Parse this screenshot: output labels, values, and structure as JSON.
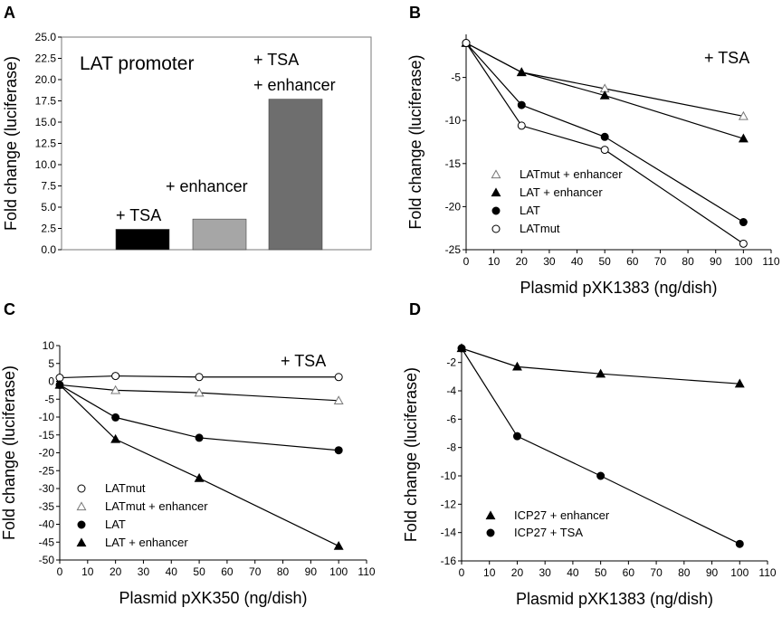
{
  "chart_data": [
    {
      "panel": "A",
      "type": "bar",
      "ylabel": "Fold change (luciferase)",
      "xlabel": "",
      "ylim": [
        0,
        25
      ],
      "yticks": [
        "0.0",
        "2.5",
        "5.0",
        "7.5",
        "10.0",
        "12.5",
        "15.0",
        "17.5",
        "20.0",
        "22.5",
        "25.0"
      ],
      "categories": [
        "+ TSA",
        "+ enhancer",
        "+ TSA\n+ enhancer"
      ],
      "values": [
        2.4,
        3.6,
        17.7
      ],
      "bar_colors": [
        "#000000",
        "#a6a6a6",
        "#6e6e6e"
      ],
      "annotations": [
        "LAT promoter",
        "+ TSA",
        "+ enhancer",
        "+ TSA",
        "+ enhancer"
      ],
      "grid": false
    },
    {
      "panel": "B",
      "type": "line",
      "xlabel": "Plasmid pXK1383 (ng/dish)",
      "ylabel": "Fold change (luciferase)",
      "xlim": [
        0,
        110
      ],
      "ylim": [
        -25,
        0
      ],
      "xticks": [
        "0",
        "10",
        "20",
        "30",
        "40",
        "50",
        "60",
        "70",
        "80",
        "90",
        "100",
        "110"
      ],
      "yticks": [
        "-5",
        "-10",
        "-15",
        "-20",
        "-25"
      ],
      "annotation": "+ TSA",
      "legend_position": "bottom-left",
      "series": [
        {
          "name": "LATmut + enhancer",
          "marker": "triangle-open",
          "x": [
            0,
            20,
            50,
            100
          ],
          "y": [
            -1,
            -4.4,
            -6.3,
            -9.5
          ]
        },
        {
          "name": "LAT + enhancer",
          "marker": "triangle-filled",
          "x": [
            0,
            20,
            50,
            100
          ],
          "y": [
            -1,
            -4.4,
            -7.1,
            -12.1
          ]
        },
        {
          "name": "LAT",
          "marker": "circle-filled",
          "x": [
            0,
            20,
            50,
            100
          ],
          "y": [
            -1,
            -8.2,
            -11.9,
            -21.8
          ]
        },
        {
          "name": "LATmut",
          "marker": "circle-open",
          "x": [
            0,
            20,
            50,
            100
          ],
          "y": [
            -1,
            -10.6,
            -13.4,
            -24.3
          ]
        }
      ],
      "grid": false
    },
    {
      "panel": "C",
      "type": "line",
      "xlabel": "Plasmid pXK350 (ng/dish)",
      "ylabel": "Fold change (luciferase)",
      "xlim": [
        0,
        110
      ],
      "ylim": [
        -50,
        10
      ],
      "xticks": [
        "0",
        "10",
        "20",
        "30",
        "40",
        "50",
        "60",
        "70",
        "80",
        "90",
        "100",
        "110"
      ],
      "yticks": [
        "10",
        "5",
        "0",
        "-5",
        "-10",
        "-15",
        "-20",
        "-25",
        "-30",
        "-35",
        "-40",
        "-45",
        "-50"
      ],
      "annotation": "+ TSA",
      "legend_position": "bottom-left",
      "series": [
        {
          "name": "LATmut",
          "marker": "circle-open",
          "x": [
            0,
            20,
            50,
            100
          ],
          "y": [
            1,
            1.5,
            1.2,
            1.2
          ]
        },
        {
          "name": "LATmut + enhancer",
          "marker": "triangle-open",
          "x": [
            0,
            20,
            50,
            100
          ],
          "y": [
            -1,
            -2.5,
            -3.2,
            -5.4
          ]
        },
        {
          "name": "LAT",
          "marker": "circle-filled",
          "x": [
            0,
            20,
            50,
            100
          ],
          "y": [
            -1,
            -10.1,
            -15.8,
            -19.3
          ]
        },
        {
          "name": "LAT + enhancer",
          "marker": "triangle-filled",
          "x": [
            0,
            20,
            50,
            100
          ],
          "y": [
            -1,
            -16.2,
            -27.1,
            -46.1
          ]
        }
      ],
      "grid": false
    },
    {
      "panel": "D",
      "type": "line",
      "xlabel": "Plasmid pXK1383 (ng/dish)",
      "ylabel": "Fold change (luciferase)",
      "xlim": [
        0,
        110
      ],
      "ylim": [
        -16,
        -1
      ],
      "xticks": [
        "0",
        "10",
        "20",
        "30",
        "40",
        "50",
        "60",
        "70",
        "80",
        "90",
        "100",
        "110"
      ],
      "yticks": [
        "-2",
        "-4",
        "-6",
        "-8",
        "-10",
        "-12",
        "-14",
        "-16"
      ],
      "legend_position": "bottom-left",
      "series": [
        {
          "name": "ICP27 + enhancer",
          "marker": "triangle-filled",
          "x": [
            0,
            20,
            50,
            100
          ],
          "y": [
            -1,
            -2.3,
            -2.8,
            -3.5
          ]
        },
        {
          "name": "ICP27 + TSA",
          "marker": "circle-filled",
          "x": [
            0,
            20,
            50,
            100
          ],
          "y": [
            -1,
            -7.2,
            -10,
            -14.8
          ]
        }
      ],
      "grid": false
    }
  ]
}
